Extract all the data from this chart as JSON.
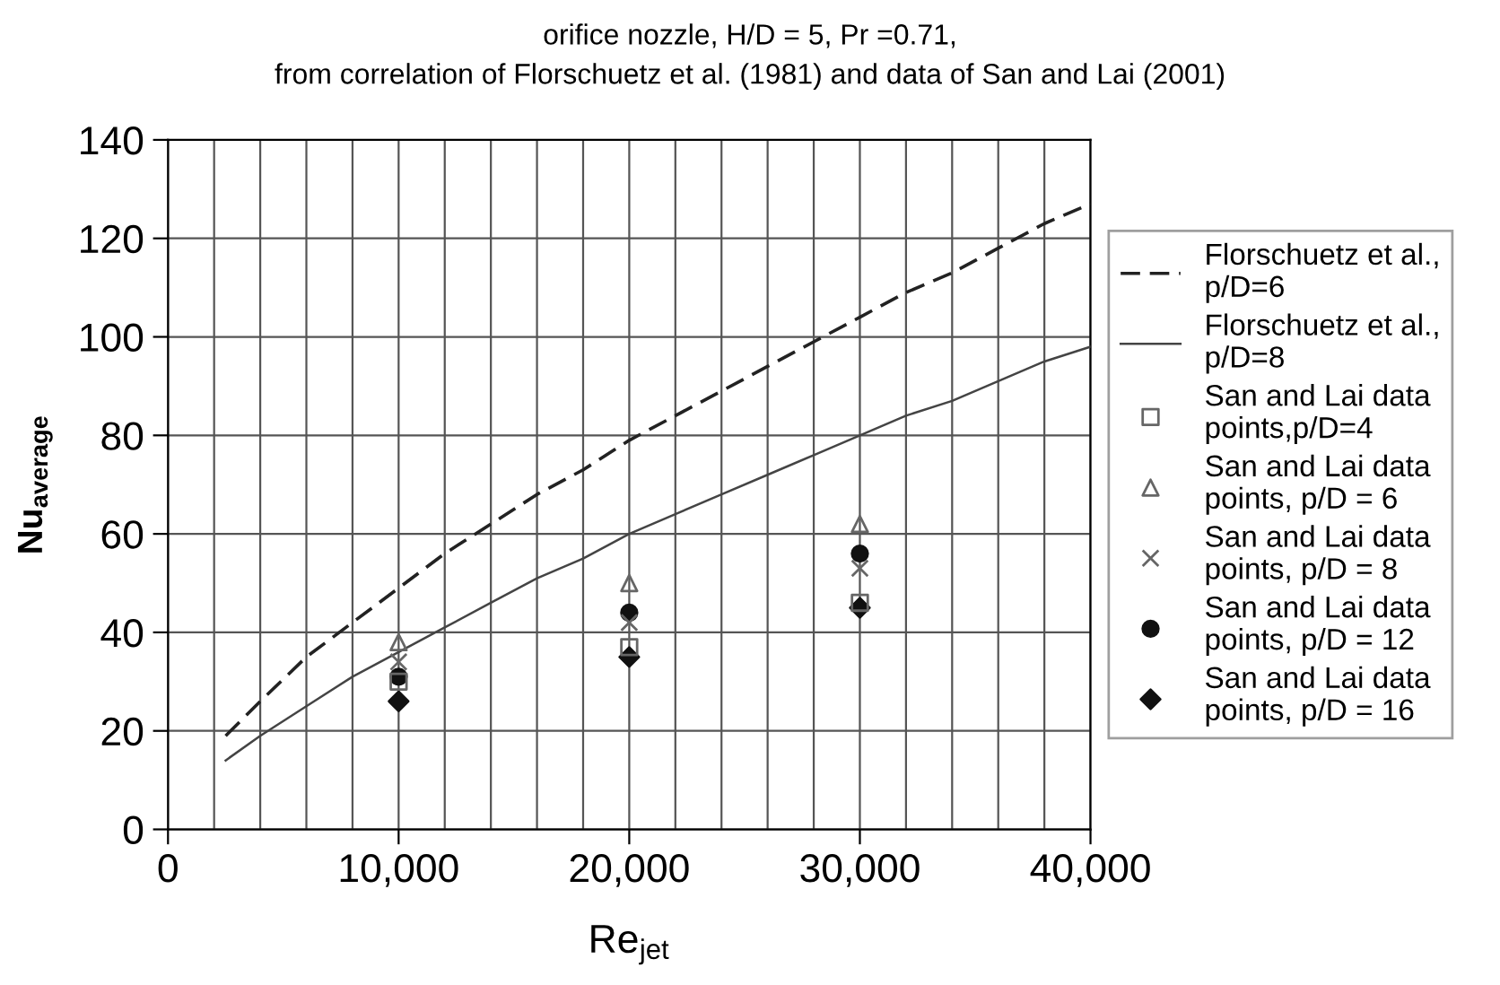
{
  "chart_data": {
    "type": "line",
    "title": "orifice nozzle, H/D = 5, Pr =0.71,",
    "subtitle": "from correlation of Florschuetz et al. (1981) and data of San and Lai (2001)",
    "xlabel": "Re$_{jet}$",
    "ylabel": "Nu$_{average}$",
    "xlim": [
      0,
      40000
    ],
    "ylim": [
      0,
      140
    ],
    "xticks": [
      {
        "value": 0,
        "label": "0"
      },
      {
        "value": 2000,
        "label": null
      },
      {
        "value": 4000,
        "label": null
      },
      {
        "value": 6000,
        "label": null
      },
      {
        "value": 8000,
        "label": null
      },
      {
        "value": 10000,
        "label": "10,000"
      },
      {
        "value": 12000,
        "label": null
      },
      {
        "value": 14000,
        "label": null
      },
      {
        "value": 16000,
        "label": null
      },
      {
        "value": 18000,
        "label": null
      },
      {
        "value": 20000,
        "label": "20,000"
      },
      {
        "value": 22000,
        "label": null
      },
      {
        "value": 24000,
        "label": null
      },
      {
        "value": 26000,
        "label": null
      },
      {
        "value": 28000,
        "label": null
      },
      {
        "value": 30000,
        "label": "30,000"
      },
      {
        "value": 32000,
        "label": null
      },
      {
        "value": 34000,
        "label": null
      },
      {
        "value": 36000,
        "label": null
      },
      {
        "value": 38000,
        "label": null
      },
      {
        "value": 40000,
        "label": "40,000"
      }
    ],
    "yticks": [
      0,
      20,
      40,
      60,
      80,
      100,
      120,
      140
    ],
    "grid": true,
    "legend": "right",
    "series": [
      {
        "name": "Florschuetz et al.,\np/D=6",
        "line_style": "dashed",
        "marker": "none",
        "color": "#222222",
        "x": [
          2500,
          4000,
          6000,
          8000,
          10000,
          12000,
          14000,
          16000,
          18000,
          20000,
          22000,
          24000,
          26000,
          28000,
          30000,
          32000,
          34000,
          36000,
          38000,
          40000
        ],
        "values": [
          19,
          26,
          35,
          42,
          49,
          56,
          62,
          68,
          73,
          79,
          84,
          89,
          94,
          99,
          104,
          109,
          113,
          118,
          123,
          127
        ]
      },
      {
        "name": "Florschuetz et al.,\np/D=8",
        "line_style": "solid",
        "marker": "none",
        "color": "#444444",
        "x": [
          2500,
          4000,
          6000,
          8000,
          10000,
          12000,
          14000,
          16000,
          18000,
          20000,
          22000,
          24000,
          26000,
          28000,
          30000,
          32000,
          34000,
          36000,
          38000,
          40000
        ],
        "values": [
          14,
          19,
          25,
          31,
          36,
          41,
          46,
          51,
          55,
          60,
          64,
          68,
          72,
          76,
          80,
          84,
          87,
          91,
          95,
          98
        ]
      },
      {
        "name": "San and Lai data\npoints,p/D=4",
        "type": "scatter",
        "marker": "square",
        "color": "#666666",
        "x": [
          10000,
          20000,
          30000
        ],
        "values": [
          30,
          37,
          46
        ]
      },
      {
        "name": "San and Lai data\npoints, p/D = 6",
        "type": "scatter",
        "marker": "triangle",
        "color": "#666666",
        "x": [
          10000,
          20000,
          30000
        ],
        "values": [
          38,
          50,
          62
        ]
      },
      {
        "name": "San and Lai data\npoints, p/D = 8",
        "type": "scatter",
        "marker": "cross",
        "color": "#666666",
        "x": [
          10000,
          20000,
          30000
        ],
        "values": [
          34,
          42,
          53
        ]
      },
      {
        "name": "San and Lai data\npoints, p/D = 12",
        "type": "scatter",
        "marker": "circle",
        "color": "#111111",
        "x": [
          10000,
          20000,
          30000
        ],
        "values": [
          31,
          44,
          56
        ]
      },
      {
        "name": "San and Lai data\npoints, p/D = 16",
        "type": "scatter",
        "marker": "diamond",
        "color": "#111111",
        "x": [
          10000,
          20000,
          30000
        ],
        "values": [
          26,
          35,
          45
        ]
      }
    ]
  }
}
